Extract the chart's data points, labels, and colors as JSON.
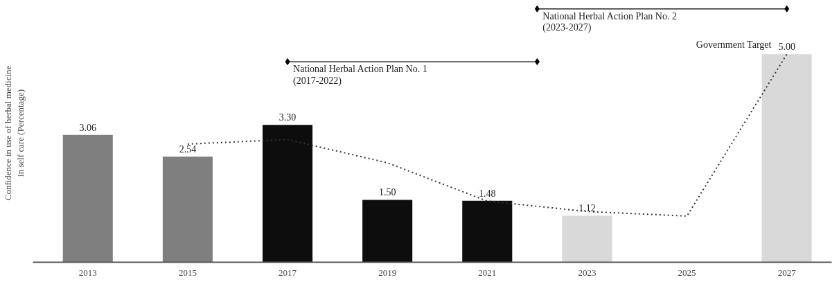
{
  "chart_data": {
    "type": "bar",
    "ylabel": "Confidence in use of herbal medicine\nin self care (Percentage)",
    "x": [
      2013,
      2015,
      2017,
      2019,
      2021,
      2023,
      2025,
      2027
    ],
    "xlim": [
      2011.9,
      2027.9
    ],
    "xticks": [
      2013,
      2015,
      2017,
      2019,
      2021,
      2023,
      2025,
      2027
    ],
    "tick_labels": "x",
    "grid": false,
    "series": [
      {
        "values": [
          3.06,
          2.54,
          3.3,
          1.5,
          1.48,
          1.12,
          null,
          5.0
        ],
        "colors": [
          "#7f7f7f",
          "#7f7f7f",
          "#0d0d0d",
          "#0d0d0d",
          "#0d0d0d",
          "#d9d9d9",
          "#d9d9d9",
          "#d9d9d9"
        ],
        "value_labels": [
          "3.06",
          "2.54",
          "3.30",
          "1.50",
          "1.48",
          "1.12",
          null,
          "5.00"
        ]
      },
      {
        "type": "line",
        "color": "#333333",
        "line_style": "dotted",
        "marker": "none",
        "x": [
          2015,
          2017,
          2019,
          2021,
          2023,
          2025,
          2027
        ],
        "values": [
          2.84,
          2.95,
          2.39,
          1.47,
          1.22,
          1.11,
          5.0
        ]
      },
      {
        "type": "line",
        "color": "#000000",
        "line_style": "solid",
        "marker": "diamond",
        "x": [
          2017,
          2022
        ],
        "values": [
          4.82,
          4.82
        ]
      },
      {
        "type": "line",
        "color": "#000000",
        "line_style": "solid",
        "marker": "diamond",
        "x": [
          2022,
          2027
        ],
        "values": [
          6.09,
          6.09
        ]
      }
    ],
    "annotations": [
      {
        "text": "National Herbal Action Plan No. 1\n(2017-2022)",
        "x": 2017,
        "y": 4.82
      },
      {
        "text": "National Herbal Action Plan No. 2\n(2023-2027)",
        "x": 2022,
        "y": 6.09
      },
      {
        "text": "Government Target",
        "x": 2027,
        "y": 5.0
      }
    ]
  }
}
